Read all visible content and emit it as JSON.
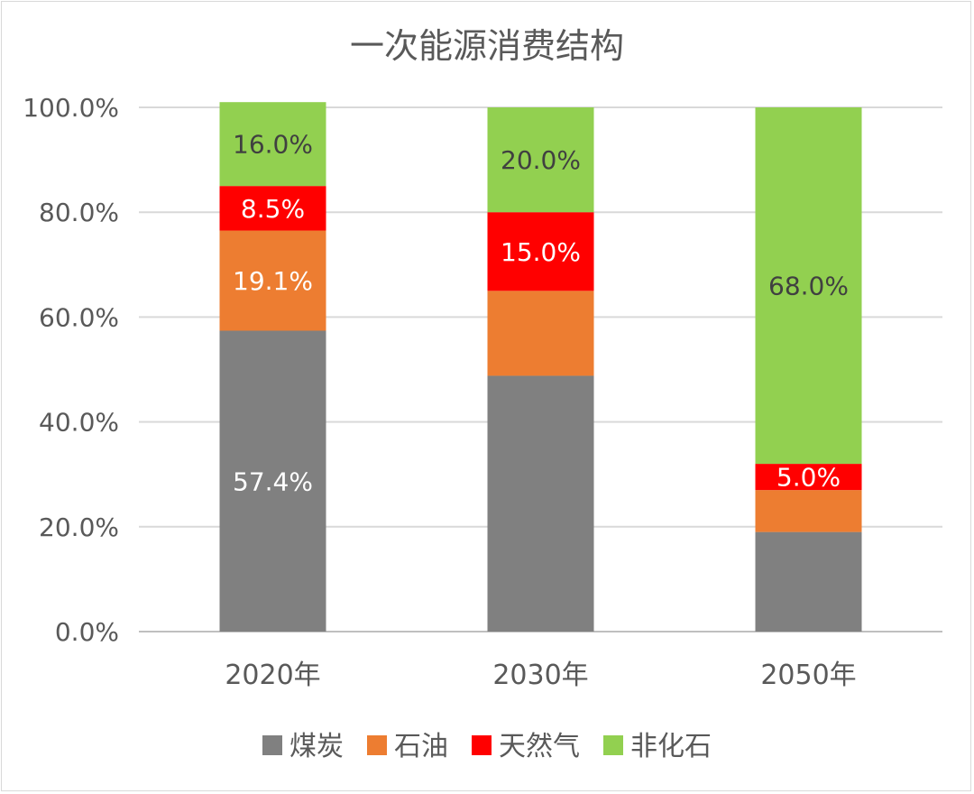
{
  "chart_data": {
    "type": "bar",
    "stacked": true,
    "title": "一次能源消费结构",
    "categories": [
      "2020年",
      "2030年",
      "2050年"
    ],
    "series": [
      {
        "name": "煤炭",
        "values": [
          57.4,
          48.8,
          19.0
        ],
        "color": "#808080",
        "labels": [
          "57.4%",
          "",
          ""
        ],
        "label_color": "#ffffff"
      },
      {
        "name": "石油",
        "values": [
          19.1,
          16.2,
          8.0
        ],
        "color": "#ED7D31",
        "labels": [
          "19.1%",
          "",
          ""
        ],
        "label_color": "#ffffff"
      },
      {
        "name": "天然气",
        "values": [
          8.5,
          15.0,
          5.0
        ],
        "color": "#FF0000",
        "labels": [
          "8.5%",
          "15.0%",
          "5.0%"
        ],
        "label_color": "#ffffff"
      },
      {
        "name": "非化石",
        "values": [
          16.0,
          20.0,
          68.0
        ],
        "color": "#92D050",
        "labels": [
          "16.0%",
          "20.0%",
          "68.0%"
        ],
        "label_color": "#404040"
      }
    ],
    "ylim": [
      0,
      100
    ],
    "yticks": [
      "0.0%",
      "20.0%",
      "40.0%",
      "60.0%",
      "80.0%",
      "100.0%"
    ],
    "xlabel": "",
    "ylabel": "",
    "grid": true,
    "legend_position": "bottom"
  }
}
